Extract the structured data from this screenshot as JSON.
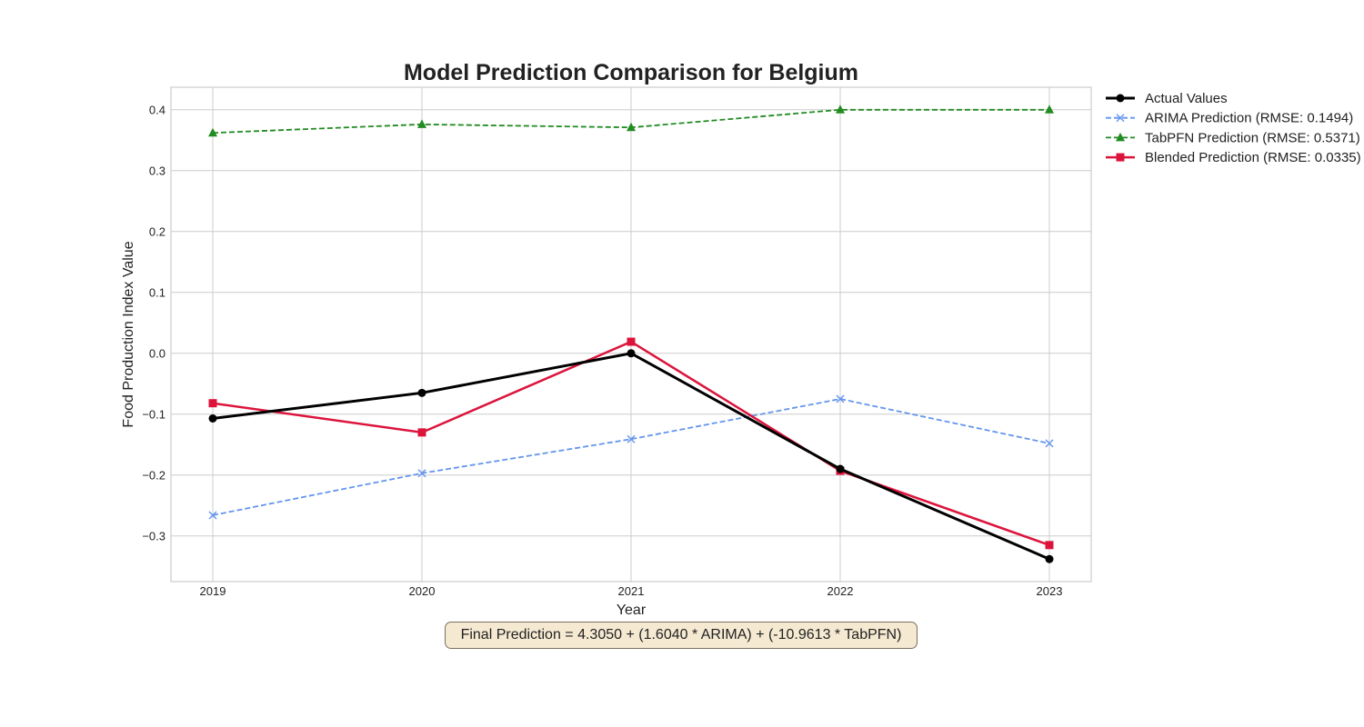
{
  "chart_data": {
    "type": "line",
    "title": "Model Prediction Comparison for Belgium",
    "xlabel": "Year",
    "ylabel": "Food Production Index Value",
    "x": [
      2019,
      2020,
      2021,
      2022,
      2023
    ],
    "x_tick_labels": [
      "2019",
      "2020",
      "2021",
      "2022",
      "2023"
    ],
    "xlim": [
      2018.8,
      2023.2
    ],
    "ylim": [
      -0.375,
      0.437
    ],
    "y_ticks": [
      -0.3,
      -0.2,
      -0.1,
      0.0,
      0.1,
      0.2,
      0.3,
      0.4
    ],
    "y_tick_labels": [
      "−0.3",
      "−0.2",
      "−0.1",
      "0.0",
      "0.1",
      "0.2",
      "0.3",
      "0.4"
    ],
    "grid": true,
    "legend_position": "outside top-right",
    "series": [
      {
        "name": "Actual Values",
        "values": [
          -0.107,
          -0.065,
          0.0,
          -0.19,
          -0.338
        ],
        "color": "#000000",
        "dash": "solid",
        "marker": "circle"
      },
      {
        "name": "ARIMA Prediction (RMSE: 0.1494)",
        "values": [
          -0.266,
          -0.197,
          -0.141,
          -0.075,
          -0.148
        ],
        "color": "#6495ed",
        "dash": "dashed",
        "marker": "x"
      },
      {
        "name": "TabPFN Prediction (RMSE: 0.5371)",
        "values": [
          0.362,
          0.376,
          0.371,
          0.4,
          0.4
        ],
        "color": "#228b22",
        "dash": "dashed",
        "marker": "triangle"
      },
      {
        "name": "Blended Prediction (RMSE: 0.0335)",
        "values": [
          -0.082,
          -0.13,
          0.019,
          -0.193,
          -0.315
        ],
        "color": "#dc143c",
        "dash": "solid",
        "marker": "square"
      }
    ],
    "annotation": "Final Prediction = 4.3050 + (1.6040 * ARIMA) + (-10.9613 * TabPFN)"
  }
}
